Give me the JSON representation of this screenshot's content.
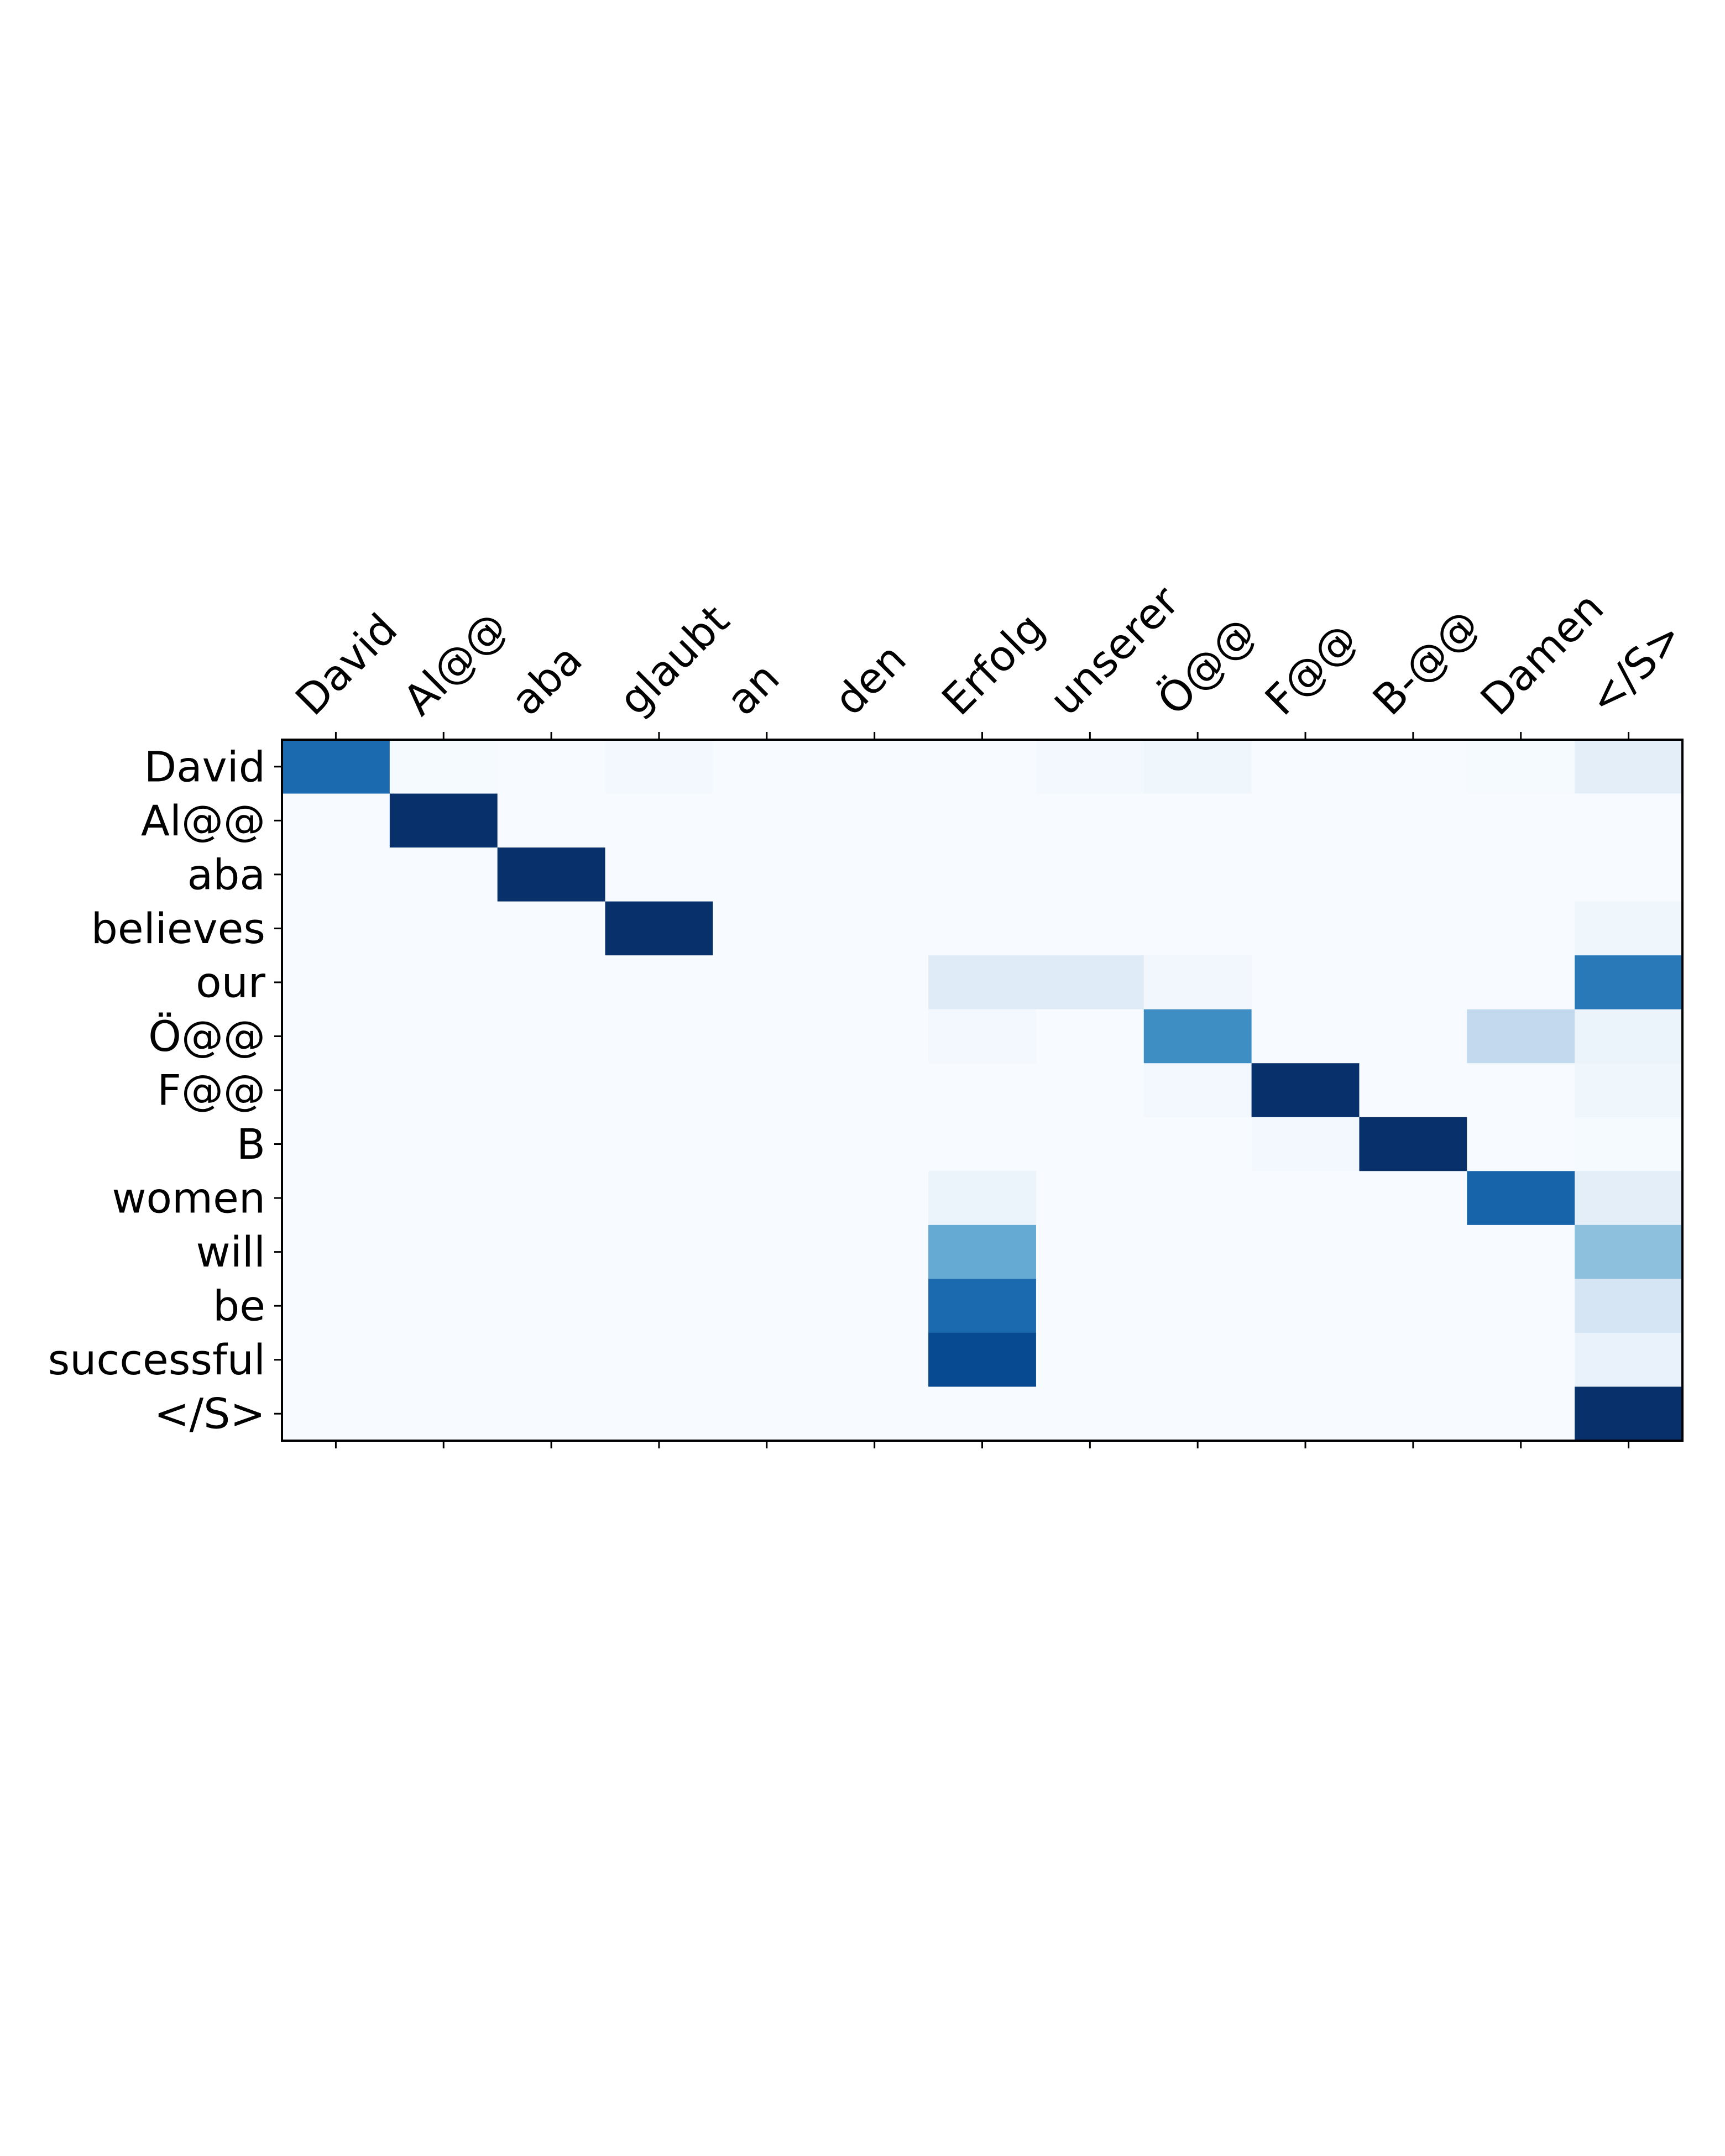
{
  "chart_data": {
    "type": "heatmap",
    "title": "",
    "xlabel": "",
    "ylabel": "",
    "x_tick_position": "top",
    "colormap": "Blues",
    "value_range": [
      0,
      1
    ],
    "grid": false,
    "legend": "none",
    "x_labels": [
      "David",
      "Al@@",
      "aba",
      "glaubt",
      "an",
      "den",
      "Erfolg",
      "unserer",
      "Ö@@",
      "F@@",
      "B-@@",
      "Damen",
      "</S>"
    ],
    "y_labels": [
      "David",
      "Al@@",
      "aba",
      "believes",
      "our",
      "Ö@@",
      "F@@",
      "B",
      "women",
      "will",
      "be",
      "successful",
      "</S>"
    ],
    "values": [
      [
        0.78,
        0.01,
        0.0,
        0.02,
        0.0,
        0.0,
        0.0,
        0.02,
        0.04,
        0.0,
        0.0,
        0.01,
        0.1
      ],
      [
        0.0,
        1.0,
        0.0,
        0.0,
        0.0,
        0.0,
        0.0,
        0.0,
        0.0,
        0.0,
        0.0,
        0.0,
        0.0
      ],
      [
        0.0,
        0.0,
        1.0,
        0.0,
        0.0,
        0.0,
        0.0,
        0.0,
        0.0,
        0.0,
        0.0,
        0.0,
        0.0
      ],
      [
        0.0,
        0.0,
        0.0,
        1.0,
        0.0,
        0.0,
        0.0,
        0.0,
        0.0,
        0.0,
        0.0,
        0.0,
        0.04
      ],
      [
        0.0,
        0.0,
        0.0,
        0.0,
        0.0,
        0.0,
        0.12,
        0.12,
        0.03,
        0.0,
        0.0,
        0.0,
        0.72
      ],
      [
        0.0,
        0.0,
        0.0,
        0.0,
        0.0,
        0.0,
        0.02,
        0.0,
        0.64,
        0.0,
        0.0,
        0.26,
        0.06
      ],
      [
        0.0,
        0.0,
        0.0,
        0.0,
        0.0,
        0.0,
        0.0,
        0.0,
        0.02,
        1.0,
        0.0,
        0.0,
        0.04
      ],
      [
        0.0,
        0.0,
        0.0,
        0.0,
        0.0,
        0.0,
        0.0,
        0.0,
        0.0,
        0.02,
        1.0,
        0.0,
        0.01
      ],
      [
        0.0,
        0.0,
        0.0,
        0.0,
        0.0,
        0.0,
        0.06,
        0.0,
        0.0,
        0.0,
        0.0,
        0.8,
        0.1
      ],
      [
        0.0,
        0.0,
        0.0,
        0.0,
        0.0,
        0.0,
        0.52,
        0.0,
        0.0,
        0.0,
        0.0,
        0.0,
        0.42
      ],
      [
        0.0,
        0.0,
        0.0,
        0.0,
        0.0,
        0.0,
        0.78,
        0.0,
        0.0,
        0.0,
        0.0,
        0.0,
        0.17
      ],
      [
        0.0,
        0.0,
        0.0,
        0.0,
        0.0,
        0.0,
        0.9,
        0.0,
        0.0,
        0.0,
        0.0,
        0.0,
        0.07
      ],
      [
        0.0,
        0.0,
        0.0,
        0.0,
        0.0,
        0.0,
        0.0,
        0.0,
        0.0,
        0.0,
        0.0,
        0.0,
        1.0
      ]
    ]
  }
}
